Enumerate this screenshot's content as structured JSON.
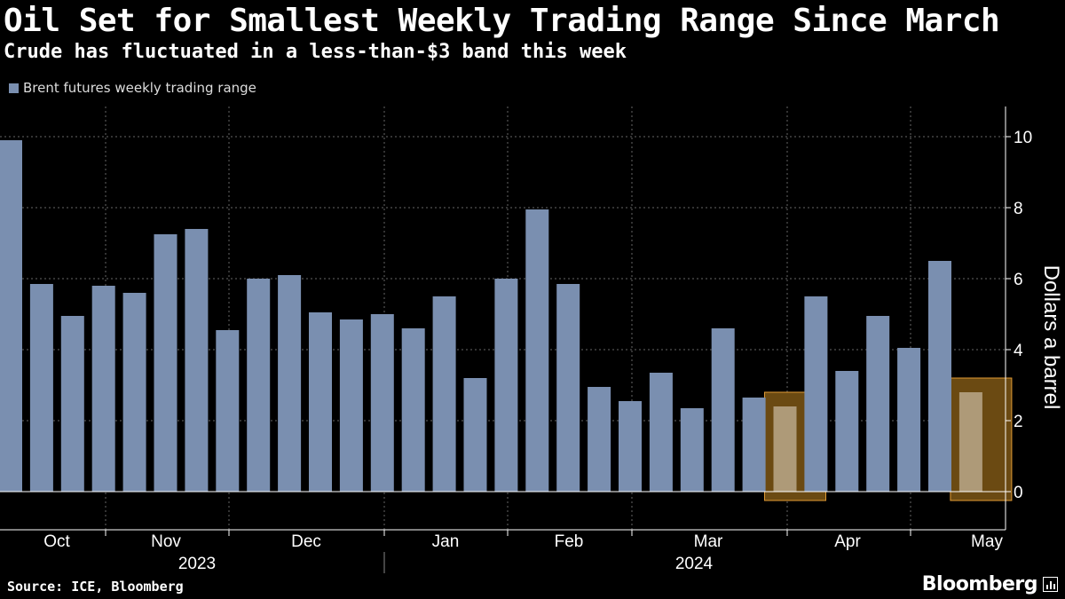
{
  "header": {
    "title": "Oil Set for Smallest Weekly Trading Range Since March",
    "subtitle": "Crude has fluctuated in a less-than-$3 band this week"
  },
  "footer": {
    "source": "Source: ICE, Bloomberg",
    "brand": "Bloomberg",
    "brand_icon": "bloomberg-terminal-icon"
  },
  "colors": {
    "background": "#000000",
    "bar": "#7a8fb0",
    "highlight_fill": "#6b4a12",
    "highlight_stroke": "#e09a34",
    "highlight_bar": "#ae9a78",
    "gridline": "#666666"
  },
  "chart_data": {
    "type": "bar",
    "legend": [
      "Brent futures weekly trading range"
    ],
    "legend_position": "top-left",
    "ylabel": "Dollars a barrel",
    "y_axis_side": "right",
    "ylim": [
      -1,
      11
    ],
    "yticks": [
      0,
      2,
      4,
      6,
      8,
      10
    ],
    "grid": true,
    "x_month_labels": [
      "Oct",
      "Nov",
      "Dec",
      "Jan",
      "Feb",
      "Mar",
      "Apr",
      "May"
    ],
    "x_year_labels": [
      "2023",
      "2024"
    ],
    "series": [
      {
        "name": "Brent futures weekly trading range",
        "values": [
          9.9,
          5.85,
          4.95,
          5.8,
          5.6,
          7.25,
          7.4,
          4.55,
          6.0,
          6.1,
          5.05,
          4.85,
          5.0,
          4.6,
          5.5,
          3.2,
          6.0,
          7.95,
          5.85,
          2.95,
          2.55,
          3.35,
          2.35,
          4.6,
          2.65,
          2.4,
          5.5,
          3.4,
          4.95,
          4.05,
          6.5,
          2.8
        ]
      }
    ],
    "highlighted_bar_indices": [
      25,
      31
    ]
  }
}
